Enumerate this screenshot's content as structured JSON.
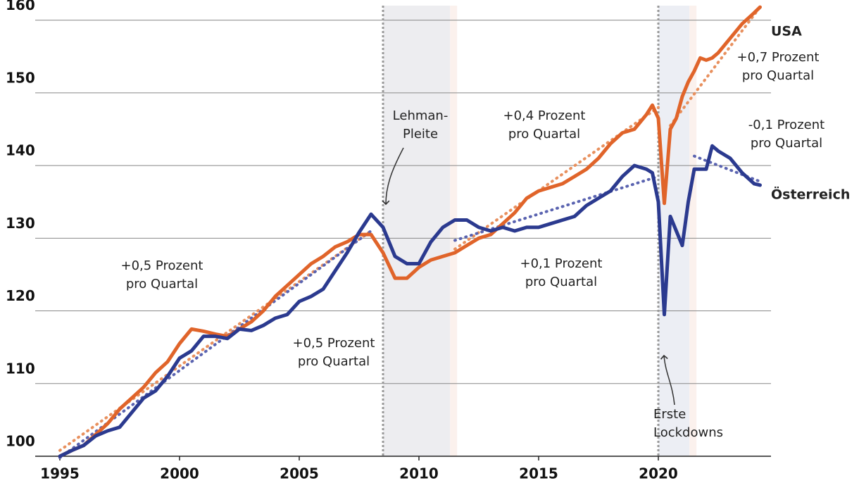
{
  "chart_data": {
    "type": "line",
    "x": [
      1995,
      1995.5,
      1996,
      1996.5,
      1997,
      1997.5,
      1998,
      1998.5,
      1999,
      1999.5,
      2000,
      2000.5,
      2001,
      2001.5,
      2002,
      2002.5,
      2003,
      2003.5,
      2004,
      2004.5,
      2005,
      2005.5,
      2006,
      2006.5,
      2007,
      2007.5,
      2008,
      2008.5,
      2009,
      2009.5,
      2010,
      2010.5,
      2011,
      2011.5,
      2012,
      2012.5,
      2013,
      2013.5,
      2014,
      2014.5,
      2015,
      2015.5,
      2016,
      2016.5,
      2017,
      2017.5,
      2018,
      2018.5,
      2019,
      2019.5,
      2019.75,
      2020,
      2020.25,
      2020.5,
      2020.75,
      2021,
      2021.25,
      2021.5,
      2021.75,
      2022,
      2022.25,
      2022.5,
      2023,
      2023.5,
      2024,
      2024.25
    ],
    "series": [
      {
        "name": "USA",
        "color": "#e0642a",
        "values": [
          100,
          100.8,
          101.5,
          103,
          104.5,
          106.5,
          108,
          109.5,
          111.5,
          113,
          115.5,
          117.5,
          117.2,
          116.8,
          116.5,
          117.5,
          118.5,
          120,
          122,
          123.5,
          125,
          126.5,
          127.5,
          128.8,
          129.5,
          130.5,
          130.5,
          128,
          124.5,
          124.5,
          126,
          127,
          127.5,
          128,
          129,
          130,
          130.5,
          132,
          133.5,
          135.5,
          136.5,
          137,
          137.5,
          138.5,
          139.5,
          141,
          143,
          144.5,
          145,
          147,
          148.3,
          146.5,
          134.8,
          145,
          146.5,
          149.5,
          151.5,
          153,
          154.8,
          154.5,
          154.8,
          155.5,
          157.5,
          159.5,
          161,
          161.8
        ]
      },
      {
        "name": "Österreich",
        "color": "#2b3a8f",
        "values": [
          100,
          100.8,
          101.5,
          102.8,
          103.5,
          104,
          106,
          108,
          109,
          111,
          113.5,
          114.5,
          116.5,
          116.5,
          116.2,
          117.5,
          117.3,
          118,
          119,
          119.5,
          121.3,
          122,
          123,
          125.5,
          128,
          130.8,
          133.3,
          131.5,
          127.5,
          126.5,
          126.5,
          129.5,
          131.5,
          132.5,
          132.5,
          131.5,
          131,
          131.5,
          131,
          131.5,
          131.5,
          132,
          132.5,
          133,
          134.5,
          135.5,
          136.5,
          138.5,
          140,
          139.5,
          139,
          135,
          119.5,
          133,
          131,
          129,
          135,
          139.5,
          139.5,
          139.5,
          142.7,
          142,
          141,
          139,
          137.5,
          137.3
        ]
      }
    ],
    "trend_lines": [
      {
        "color": "#e8905e",
        "x": [
          1995,
          2008
        ],
        "values": [
          100.8,
          131
        ]
      },
      {
        "color": "#e8905e",
        "x": [
          2011.5,
          2020
        ],
        "values": [
          128.5,
          148
        ]
      },
      {
        "color": "#e8905e",
        "x": [
          2020.5,
          2024.25
        ],
        "values": [
          145.5,
          161.8
        ]
      },
      {
        "color": "#5a63b0",
        "x": [
          1995,
          2008
        ],
        "values": [
          99.8,
          131
        ]
      },
      {
        "color": "#5a63b0",
        "x": [
          2011.5,
          2020
        ],
        "values": [
          129.7,
          138.5
        ]
      },
      {
        "color": "#5a63b0",
        "x": [
          2021.5,
          2024.25
        ],
        "values": [
          141.3,
          137.8
        ]
      }
    ],
    "shaded_periods": [
      [
        2008.5,
        2011.3
      ],
      [
        2020,
        2021.3
      ]
    ],
    "event_lines": [
      2008.5,
      2020
    ],
    "annotations": [
      {
        "lines": [
          "+0,7 Prozent",
          "pro Quartal"
        ],
        "series": 0
      },
      {
        "lines": [
          "+0,4 Prozent",
          "pro Quartal"
        ],
        "series": 0
      },
      {
        "lines": [
          "+0,5 Prozent",
          "pro Quartal"
        ],
        "series": 0
      },
      {
        "lines": [
          "-0,1 Prozent",
          "pro Quartal"
        ],
        "series": 1
      },
      {
        "lines": [
          "+0,1 Prozent",
          "pro Quartal"
        ],
        "series": 1
      },
      {
        "lines": [
          "+0,5 Prozent",
          "pro Quartal"
        ],
        "series": 1
      },
      {
        "lines": [
          "Lehman-",
          "Pleite"
        ]
      },
      {
        "lines": [
          "Erste",
          "Lockdowns"
        ]
      }
    ],
    "xlim": [
      1995,
      2025
    ],
    "xticks": [
      1995,
      2000,
      2005,
      2010,
      2015,
      2020
    ],
    "ylim": [
      100,
      162
    ],
    "yticks": [
      100,
      110,
      120,
      130,
      140,
      150,
      160
    ],
    "grid": true
  }
}
